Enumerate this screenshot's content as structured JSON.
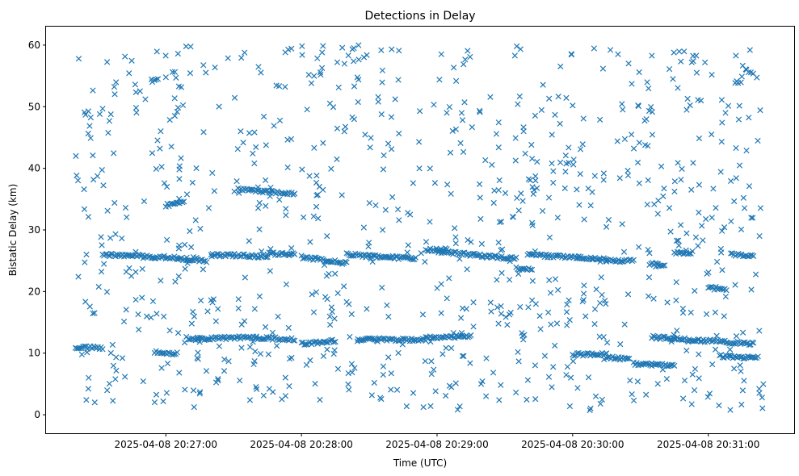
{
  "chart_data": {
    "type": "scatter",
    "title": "Detections in Delay",
    "xlabel": "Time (UTC)",
    "ylabel": "Bistatic Delay (km)",
    "marker": "x",
    "color": "#1f77b4",
    "grid": false,
    "legend": "none",
    "x_start": "2025-04-08 20:26:20",
    "x_end": "2025-04-08 20:31:25",
    "xlim": [
      "2025-04-08 20:26:07",
      "2025-04-08 20:31:38"
    ],
    "ylim": [
      -3,
      63
    ],
    "x_ticks": [
      "2025-04-08 20:27:00",
      "2025-04-08 20:28:00",
      "2025-04-08 20:29:00",
      "2025-04-08 20:30:00",
      "2025-04-08 20:31:00"
    ],
    "x_tick_labels": [
      "2025-04-08 20:27:00",
      "2025-04-08 20:28:00",
      "2025-04-08 20:29:00",
      "2025-04-08 20:30:00",
      "2025-04-08 20:31:00"
    ],
    "y_ticks": [
      0,
      10,
      20,
      30,
      40,
      50,
      60
    ],
    "y_tick_labels": [
      "0",
      "10",
      "20",
      "30",
      "40",
      "50",
      "60"
    ],
    "tracks": [
      {
        "x_start": "2025-04-08 20:26:20",
        "x_end": "2025-04-08 20:26:32",
        "y_start": 11.0,
        "y_end": 10.8
      },
      {
        "x_start": "2025-04-08 20:26:32",
        "x_end": "2025-04-08 20:27:05",
        "y_start": 26.0,
        "y_end": 25.5
      },
      {
        "x_start": "2025-04-08 20:26:55",
        "x_end": "2025-04-08 20:27:05",
        "y_start": 10.2,
        "y_end": 9.9
      },
      {
        "x_start": "2025-04-08 20:27:00",
        "x_end": "2025-04-08 20:27:08",
        "y_start": 34.0,
        "y_end": 34.5
      },
      {
        "x_start": "2025-04-08 20:27:05",
        "x_end": "2025-04-08 20:27:18",
        "y_start": 25.3,
        "y_end": 25.0
      },
      {
        "x_start": "2025-04-08 20:27:10",
        "x_end": "2025-04-08 20:27:40",
        "y_start": 12.3,
        "y_end": 12.6
      },
      {
        "x_start": "2025-04-08 20:27:20",
        "x_end": "2025-04-08 20:27:45",
        "y_start": 26.0,
        "y_end": 25.7
      },
      {
        "x_start": "2025-04-08 20:27:32",
        "x_end": "2025-04-08 20:27:57",
        "y_start": 36.6,
        "y_end": 35.8
      },
      {
        "x_start": "2025-04-08 20:27:40",
        "x_end": "2025-04-08 20:27:57",
        "y_start": 12.5,
        "y_end": 12.2
      },
      {
        "x_start": "2025-04-08 20:27:45",
        "x_end": "2025-04-08 20:27:57",
        "y_start": 26.2,
        "y_end": 26.0
      },
      {
        "x_start": "2025-04-08 20:28:00",
        "x_end": "2025-04-08 20:28:20",
        "y_start": 25.6,
        "y_end": 24.6
      },
      {
        "x_start": "2025-04-08 20:28:00",
        "x_end": "2025-04-08 20:28:15",
        "y_start": 11.5,
        "y_end": 12.0
      },
      {
        "x_start": "2025-04-08 20:28:20",
        "x_end": "2025-04-08 20:28:50",
        "y_start": 26.0,
        "y_end": 25.3
      },
      {
        "x_start": "2025-04-08 20:28:25",
        "x_end": "2025-04-08 20:28:55",
        "y_start": 12.3,
        "y_end": 12.1
      },
      {
        "x_start": "2025-04-08 20:28:55",
        "x_end": "2025-04-08 20:29:15",
        "y_start": 12.5,
        "y_end": 12.8
      },
      {
        "x_start": "2025-04-08 20:28:55",
        "x_end": "2025-04-08 20:29:05",
        "y_start": 26.8,
        "y_end": 26.8
      },
      {
        "x_start": "2025-04-08 20:29:00",
        "x_end": "2025-04-08 20:29:35",
        "y_start": 26.5,
        "y_end": 25.3
      },
      {
        "x_start": "2025-04-08 20:29:35",
        "x_end": "2025-04-08 20:29:42",
        "y_start": 23.7,
        "y_end": 23.6
      },
      {
        "x_start": "2025-04-08 20:29:40",
        "x_end": "2025-04-08 20:30:15",
        "y_start": 26.0,
        "y_end": 25.2
      },
      {
        "x_start": "2025-04-08 20:30:00",
        "x_end": "2025-04-08 20:30:15",
        "y_start": 9.8,
        "y_end": 9.8
      },
      {
        "x_start": "2025-04-08 20:30:15",
        "x_end": "2025-04-08 20:30:25",
        "y_start": 9.3,
        "y_end": 9.1
      },
      {
        "x_start": "2025-04-08 20:30:15",
        "x_end": "2025-04-08 20:30:27",
        "y_start": 25.0,
        "y_end": 25.0
      },
      {
        "x_start": "2025-04-08 20:30:27",
        "x_end": "2025-04-08 20:30:35",
        "y_start": 8.3,
        "y_end": 8.1
      },
      {
        "x_start": "2025-04-08 20:30:34",
        "x_end": "2025-04-08 20:30:40",
        "y_start": 24.5,
        "y_end": 24.3
      },
      {
        "x_start": "2025-04-08 20:30:35",
        "x_end": "2025-04-08 20:31:20",
        "y_start": 12.6,
        "y_end": 11.5
      },
      {
        "x_start": "2025-04-08 20:30:35",
        "x_end": "2025-04-08 20:30:45",
        "y_start": 8.2,
        "y_end": 8.0
      },
      {
        "x_start": "2025-04-08 20:30:45",
        "x_end": "2025-04-08 20:30:53",
        "y_start": 26.3,
        "y_end": 26.3
      },
      {
        "x_start": "2025-04-08 20:31:10",
        "x_end": "2025-04-08 20:31:20",
        "y_start": 26.0,
        "y_end": 25.8
      },
      {
        "x_start": "2025-04-08 20:31:00",
        "x_end": "2025-04-08 20:31:08",
        "y_start": 20.6,
        "y_end": 20.4
      },
      {
        "x_start": "2025-04-08 20:31:05",
        "x_end": "2025-04-08 20:31:22",
        "y_start": 9.5,
        "y_end": 9.3
      }
    ],
    "random_scatter": {
      "count": 900,
      "y_min": 0.5,
      "y_max": 60
    }
  }
}
